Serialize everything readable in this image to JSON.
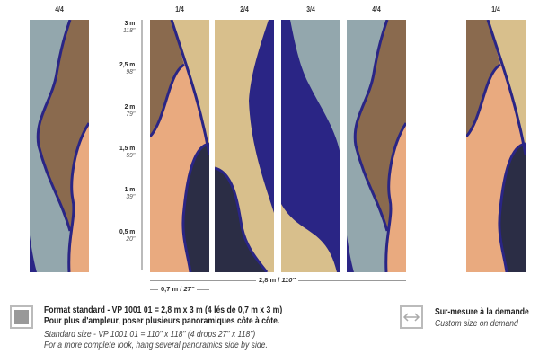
{
  "panels": [
    {
      "label": "4/4",
      "type": "p4"
    },
    {
      "label": "1/4",
      "type": "p1"
    },
    {
      "label": "2/4",
      "type": "p2"
    },
    {
      "label": "3/4",
      "type": "p3"
    },
    {
      "label": "4/4",
      "type": "p4"
    },
    {
      "label": "1/4",
      "type": "p1"
    }
  ],
  "scale": [
    {
      "m": "3 m",
      "in": "118\""
    },
    {
      "m": "2,5 m",
      "in": "98\""
    },
    {
      "m": "2 m",
      "in": "79\""
    },
    {
      "m": "1,5 m",
      "in": "59\""
    },
    {
      "m": "1 m",
      "in": "39\""
    },
    {
      "m": "0,5 m",
      "in": "20\""
    }
  ],
  "dims": {
    "total_m": "2,8 m /",
    "total_in": "110\"",
    "drop_m": "0,7 m /",
    "drop_in": "27\""
  },
  "standard": {
    "line1": "Format standard - VP 1001 01 = 2,8 m x 3 m (4 lés de 0,7 m x 3 m)",
    "line2": "Pour plus d'ampleur, poser plusieurs panoramiques côte à côte.",
    "line3": "Standard size - VP 1001 01 = 110\" x 118\" (4 drops 27\" x 118\")",
    "line4": "For a more complete look, hang several panoramics side by side.",
    "icon": "square-swatch-icon"
  },
  "custom": {
    "line1": "Sur-mesure à la demande",
    "line2": "Custom size on demand",
    "icon": "double-arrow-icon"
  },
  "colors": {
    "navy": "#2a2585",
    "dark": "#2b2d45",
    "peach": "#e9aa7f",
    "beige": "#d8bf8c",
    "brown": "#8a6a4e",
    "slate": "#93a7ad"
  }
}
